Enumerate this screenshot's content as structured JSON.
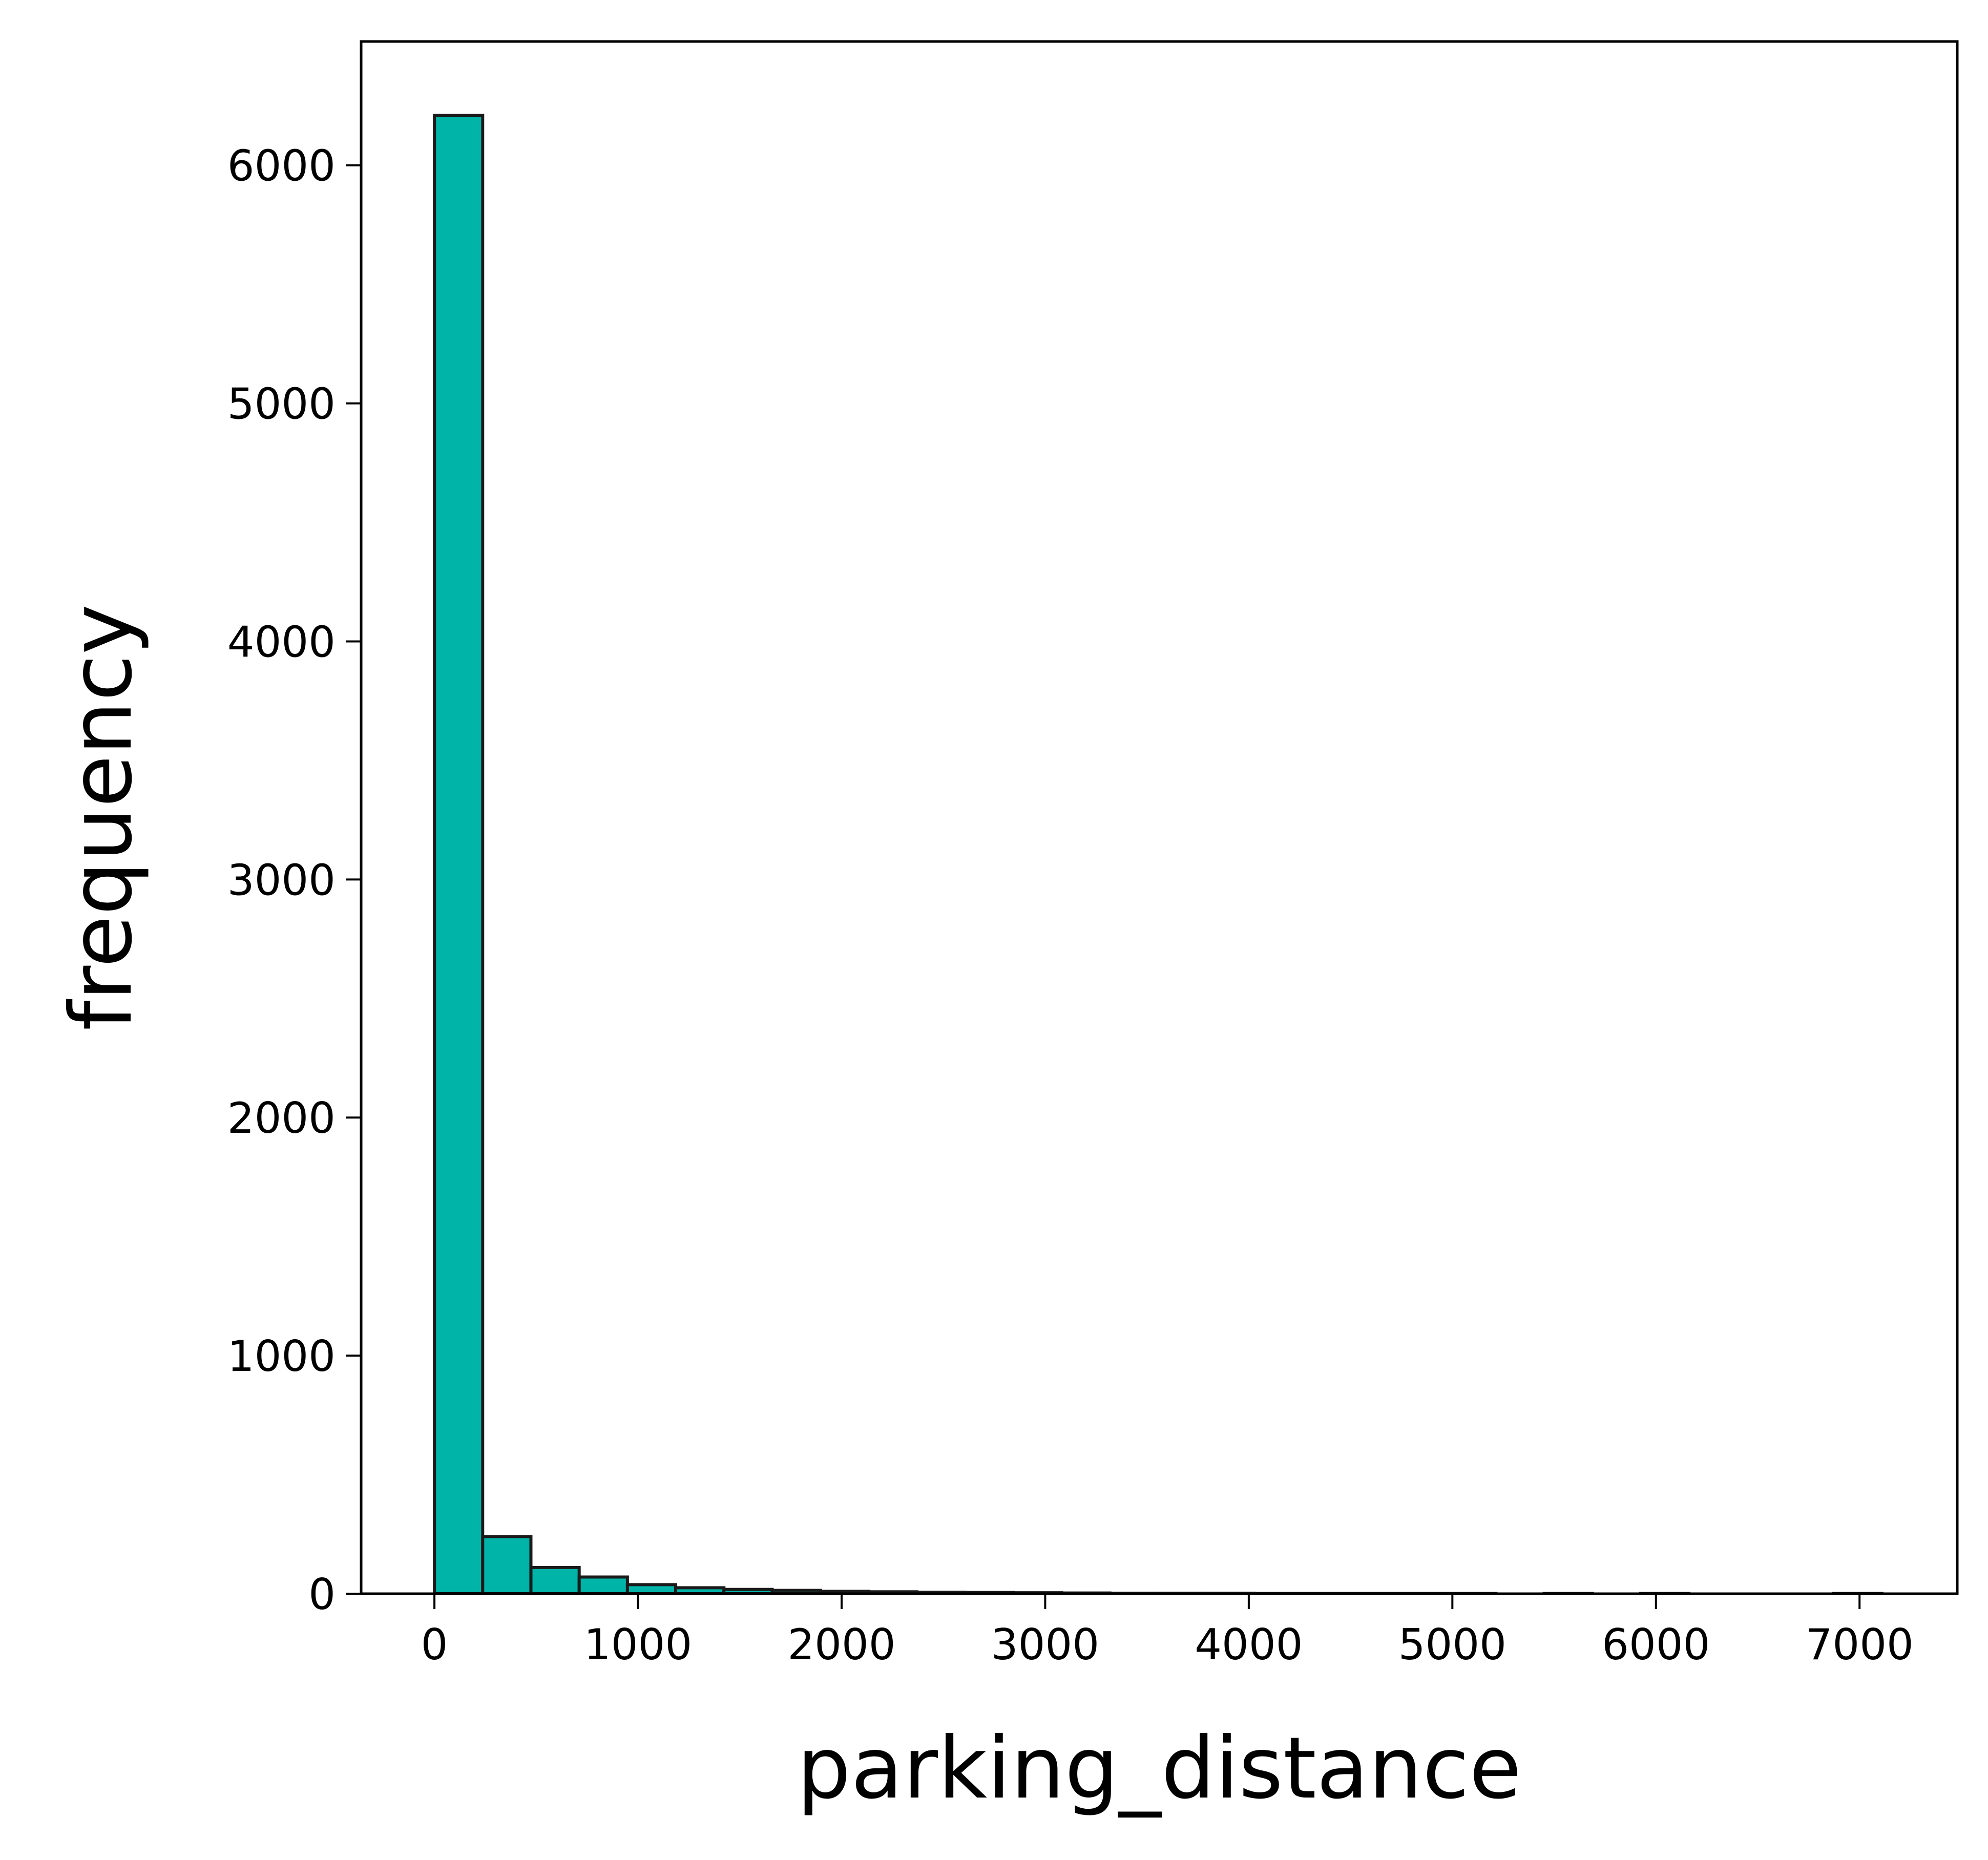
{
  "chart_data": {
    "type": "bar",
    "title": "",
    "xlabel": "parking_distance",
    "ylabel": "frequency",
    "xlim": [
      -360,
      7480
    ],
    "ylim": [
      0,
      6520
    ],
    "xticks": [
      0,
      1000,
      2000,
      3000,
      4000,
      5000,
      6000,
      7000
    ],
    "yticks": [
      0,
      1000,
      2000,
      3000,
      4000,
      5000,
      6000
    ],
    "bin_edges": [
      0,
      237,
      474,
      711,
      948,
      1185,
      1422,
      1659,
      1896,
      2133,
      2370,
      2607,
      2844,
      3081,
      3318,
      3555,
      3792,
      4029,
      4266,
      4503,
      4740,
      4977,
      5214,
      5451,
      5688,
      5925,
      6162,
      6399,
      6636,
      6873,
      7110
    ],
    "values": [
      6210,
      240,
      110,
      70,
      38,
      25,
      18,
      14,
      10,
      8,
      6,
      5,
      4,
      3,
      2,
      2,
      2,
      1,
      1,
      1,
      1,
      1,
      0,
      1,
      0,
      1,
      0,
      0,
      0,
      1
    ],
    "bar_color": "#00b4a8",
    "edge_color": "#1a1a1a",
    "grid": false
  }
}
